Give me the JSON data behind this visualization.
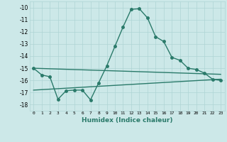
{
  "xlabel": "Humidex (Indice chaleur)",
  "ylabel": "",
  "xlim": [
    -0.5,
    23.5
  ],
  "ylim": [
    -18.5,
    -9.5
  ],
  "yticks": [
    -18,
    -17,
    -16,
    -15,
    -14,
    -13,
    -12,
    -11,
    -10
  ],
  "xticks": [
    0,
    1,
    2,
    3,
    4,
    5,
    6,
    7,
    8,
    9,
    10,
    11,
    12,
    13,
    14,
    15,
    16,
    17,
    18,
    19,
    20,
    21,
    22,
    23
  ],
  "xtick_labels": [
    "0",
    "1",
    "2",
    "3",
    "4",
    "5",
    "6",
    "7",
    "8",
    "9",
    "10",
    "11",
    "12",
    "13",
    "14",
    "15",
    "16",
    "17",
    "18",
    "19",
    "20",
    "21",
    "22",
    "23"
  ],
  "bg_color": "#cce8e8",
  "grid_color": "#aed4d4",
  "line_color": "#2a7a6a",
  "line1_x": [
    0,
    1,
    2,
    3,
    4,
    5,
    6,
    7,
    8,
    9,
    10,
    11,
    12,
    13,
    14,
    15,
    16,
    17,
    18,
    19,
    20,
    21,
    22,
    23
  ],
  "line1_y": [
    -15.0,
    -15.55,
    -15.7,
    -17.55,
    -16.85,
    -16.8,
    -16.8,
    -17.6,
    -16.2,
    -14.8,
    -13.2,
    -11.6,
    -10.15,
    -10.1,
    -10.85,
    -12.4,
    -12.8,
    -14.1,
    -14.35,
    -15.0,
    -15.1,
    -15.4,
    -15.9,
    -16.0
  ],
  "line2_x": [
    0,
    23
  ],
  "line2_y": [
    -15.0,
    -15.5
  ],
  "line3_x": [
    0,
    23
  ],
  "line3_y": [
    -16.8,
    -15.9
  ],
  "marker": "o",
  "marker_size": 2.5,
  "line_width": 1.0
}
